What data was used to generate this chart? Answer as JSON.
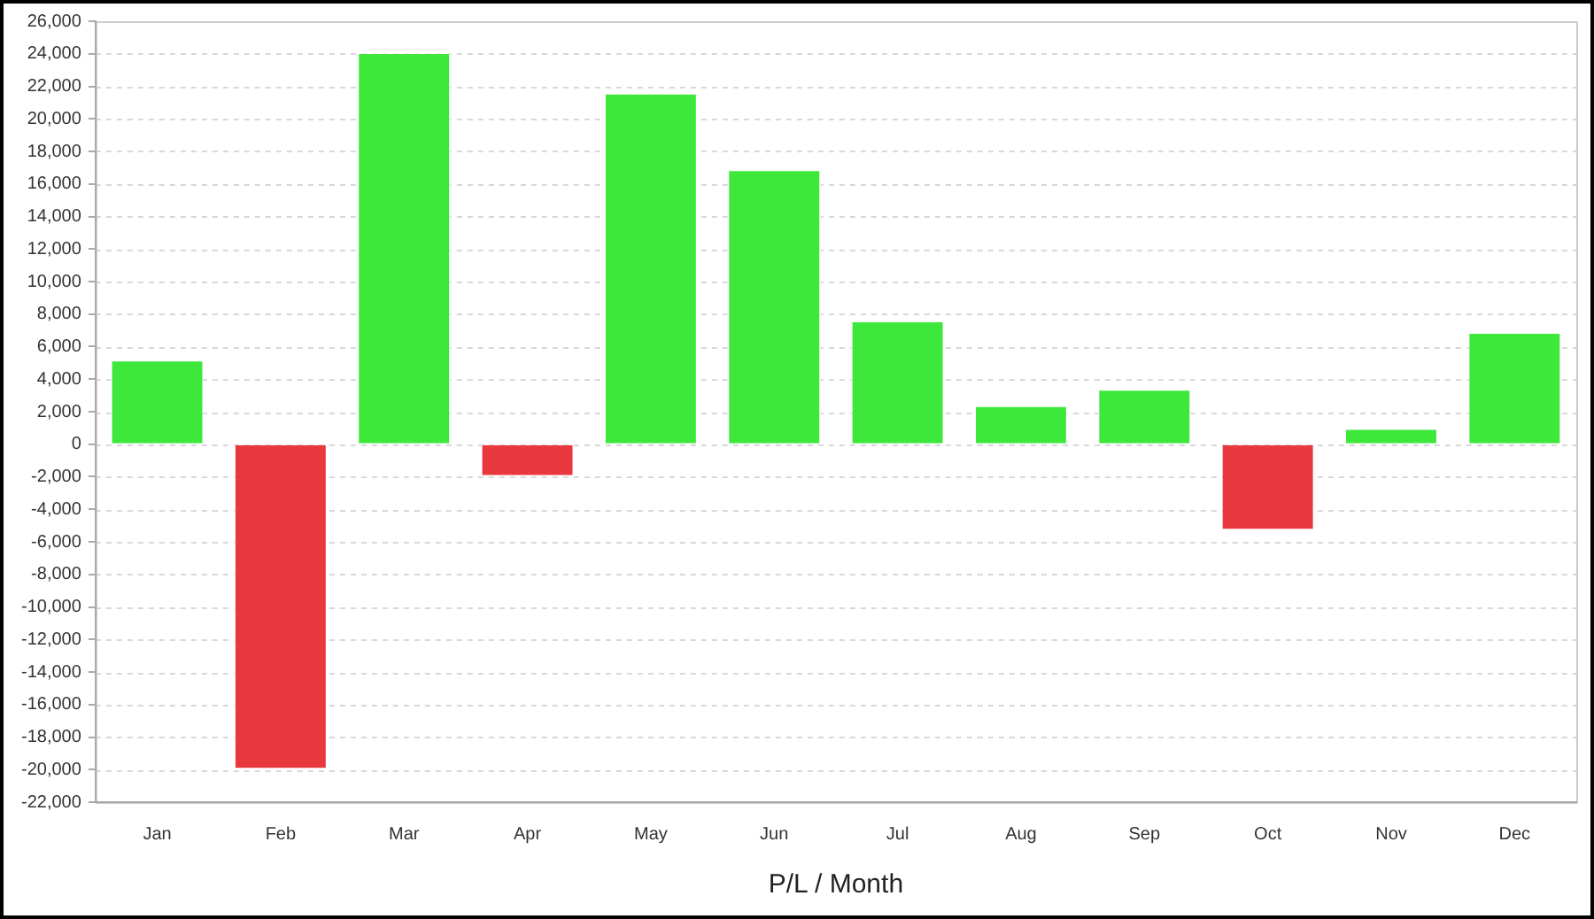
{
  "chart_data": {
    "type": "bar",
    "xlabel": "P/L / Month",
    "categories": [
      "Jan",
      "Feb",
      "Mar",
      "Apr",
      "May",
      "Jun",
      "Jul",
      "Aug",
      "Sep",
      "Oct",
      "Nov",
      "Dec"
    ],
    "values": [
      5200,
      -20000,
      24100,
      -2000,
      21600,
      16900,
      7600,
      2400,
      3400,
      -5300,
      1000,
      6900
    ],
    "colors": [
      "#3de83b",
      "#e8383d",
      "#3de83b",
      "#e8383d",
      "#3de83b",
      "#3de83b",
      "#3de83b",
      "#3de83b",
      "#3de83b",
      "#e8383d",
      "#3de83b",
      "#3de83b"
    ],
    "ylim": [
      -22000,
      26000
    ],
    "yticks": [
      {
        "value": -22000,
        "label": "-22,000"
      },
      {
        "value": -20000,
        "label": "-20,000"
      },
      {
        "value": -18000,
        "label": "-18,000"
      },
      {
        "value": -16000,
        "label": "-16,000"
      },
      {
        "value": -14000,
        "label": "-14,000"
      },
      {
        "value": -12000,
        "label": "-12,000"
      },
      {
        "value": -10000,
        "label": "-10,000"
      },
      {
        "value": -8000,
        "label": "-8,000"
      },
      {
        "value": -6000,
        "label": "-6,000"
      },
      {
        "value": -4000,
        "label": "-4,000"
      },
      {
        "value": -2000,
        "label": "-2,000"
      },
      0,
      {
        "value": 2000,
        "label": "2,000"
      },
      {
        "value": 4000,
        "label": "4,000"
      },
      {
        "value": 6000,
        "label": "6,000"
      },
      {
        "value": 8000,
        "label": "8,000"
      },
      {
        "value": 10000,
        "label": "10,000"
      },
      {
        "value": 12000,
        "label": "12,000"
      },
      {
        "value": 14000,
        "label": "14,000"
      },
      {
        "value": 16000,
        "label": "16,000"
      },
      {
        "value": 18000,
        "label": "18,000"
      },
      {
        "value": 20000,
        "label": "20,000"
      },
      {
        "value": 22000,
        "label": "22,000"
      },
      {
        "value": 24000,
        "label": "24,000"
      },
      {
        "value": 26000,
        "label": "26,000"
      }
    ],
    "grid": "y",
    "legend": false
  }
}
